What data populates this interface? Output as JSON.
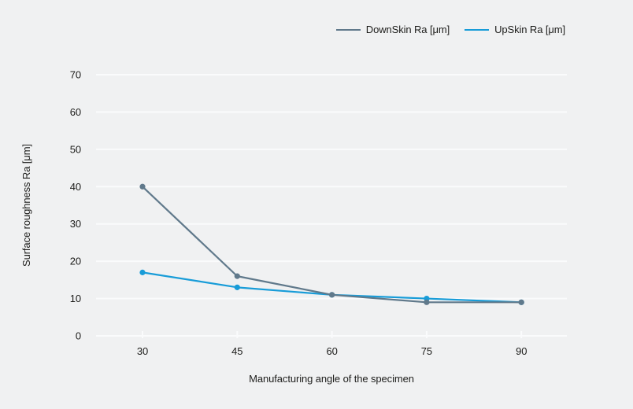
{
  "chart_data": {
    "type": "line",
    "title": "",
    "xlabel": "Manufacturing angle of the specimen",
    "ylabel": "Surface roughness Ra [μm]",
    "categories": [
      "30",
      "45",
      "60",
      "75",
      "90"
    ],
    "y_ticks": [
      0,
      10,
      20,
      30,
      40,
      50,
      60,
      70
    ],
    "ylim": [
      0,
      70
    ],
    "grid": true,
    "marker": "circle",
    "legend_position": "top-right",
    "series": [
      {
        "name": "DownSkin Ra [μm]",
        "color": "#60798b",
        "values": [
          40,
          16,
          11,
          9,
          9
        ]
      },
      {
        "name": "UpSkin Ra [μm]",
        "color": "#189cd8",
        "values": [
          17,
          13,
          11,
          10,
          9
        ]
      }
    ]
  },
  "colors": {
    "background": "#f0f1f2",
    "gridline": "#fafbfc",
    "text": "#1d1d1b"
  }
}
